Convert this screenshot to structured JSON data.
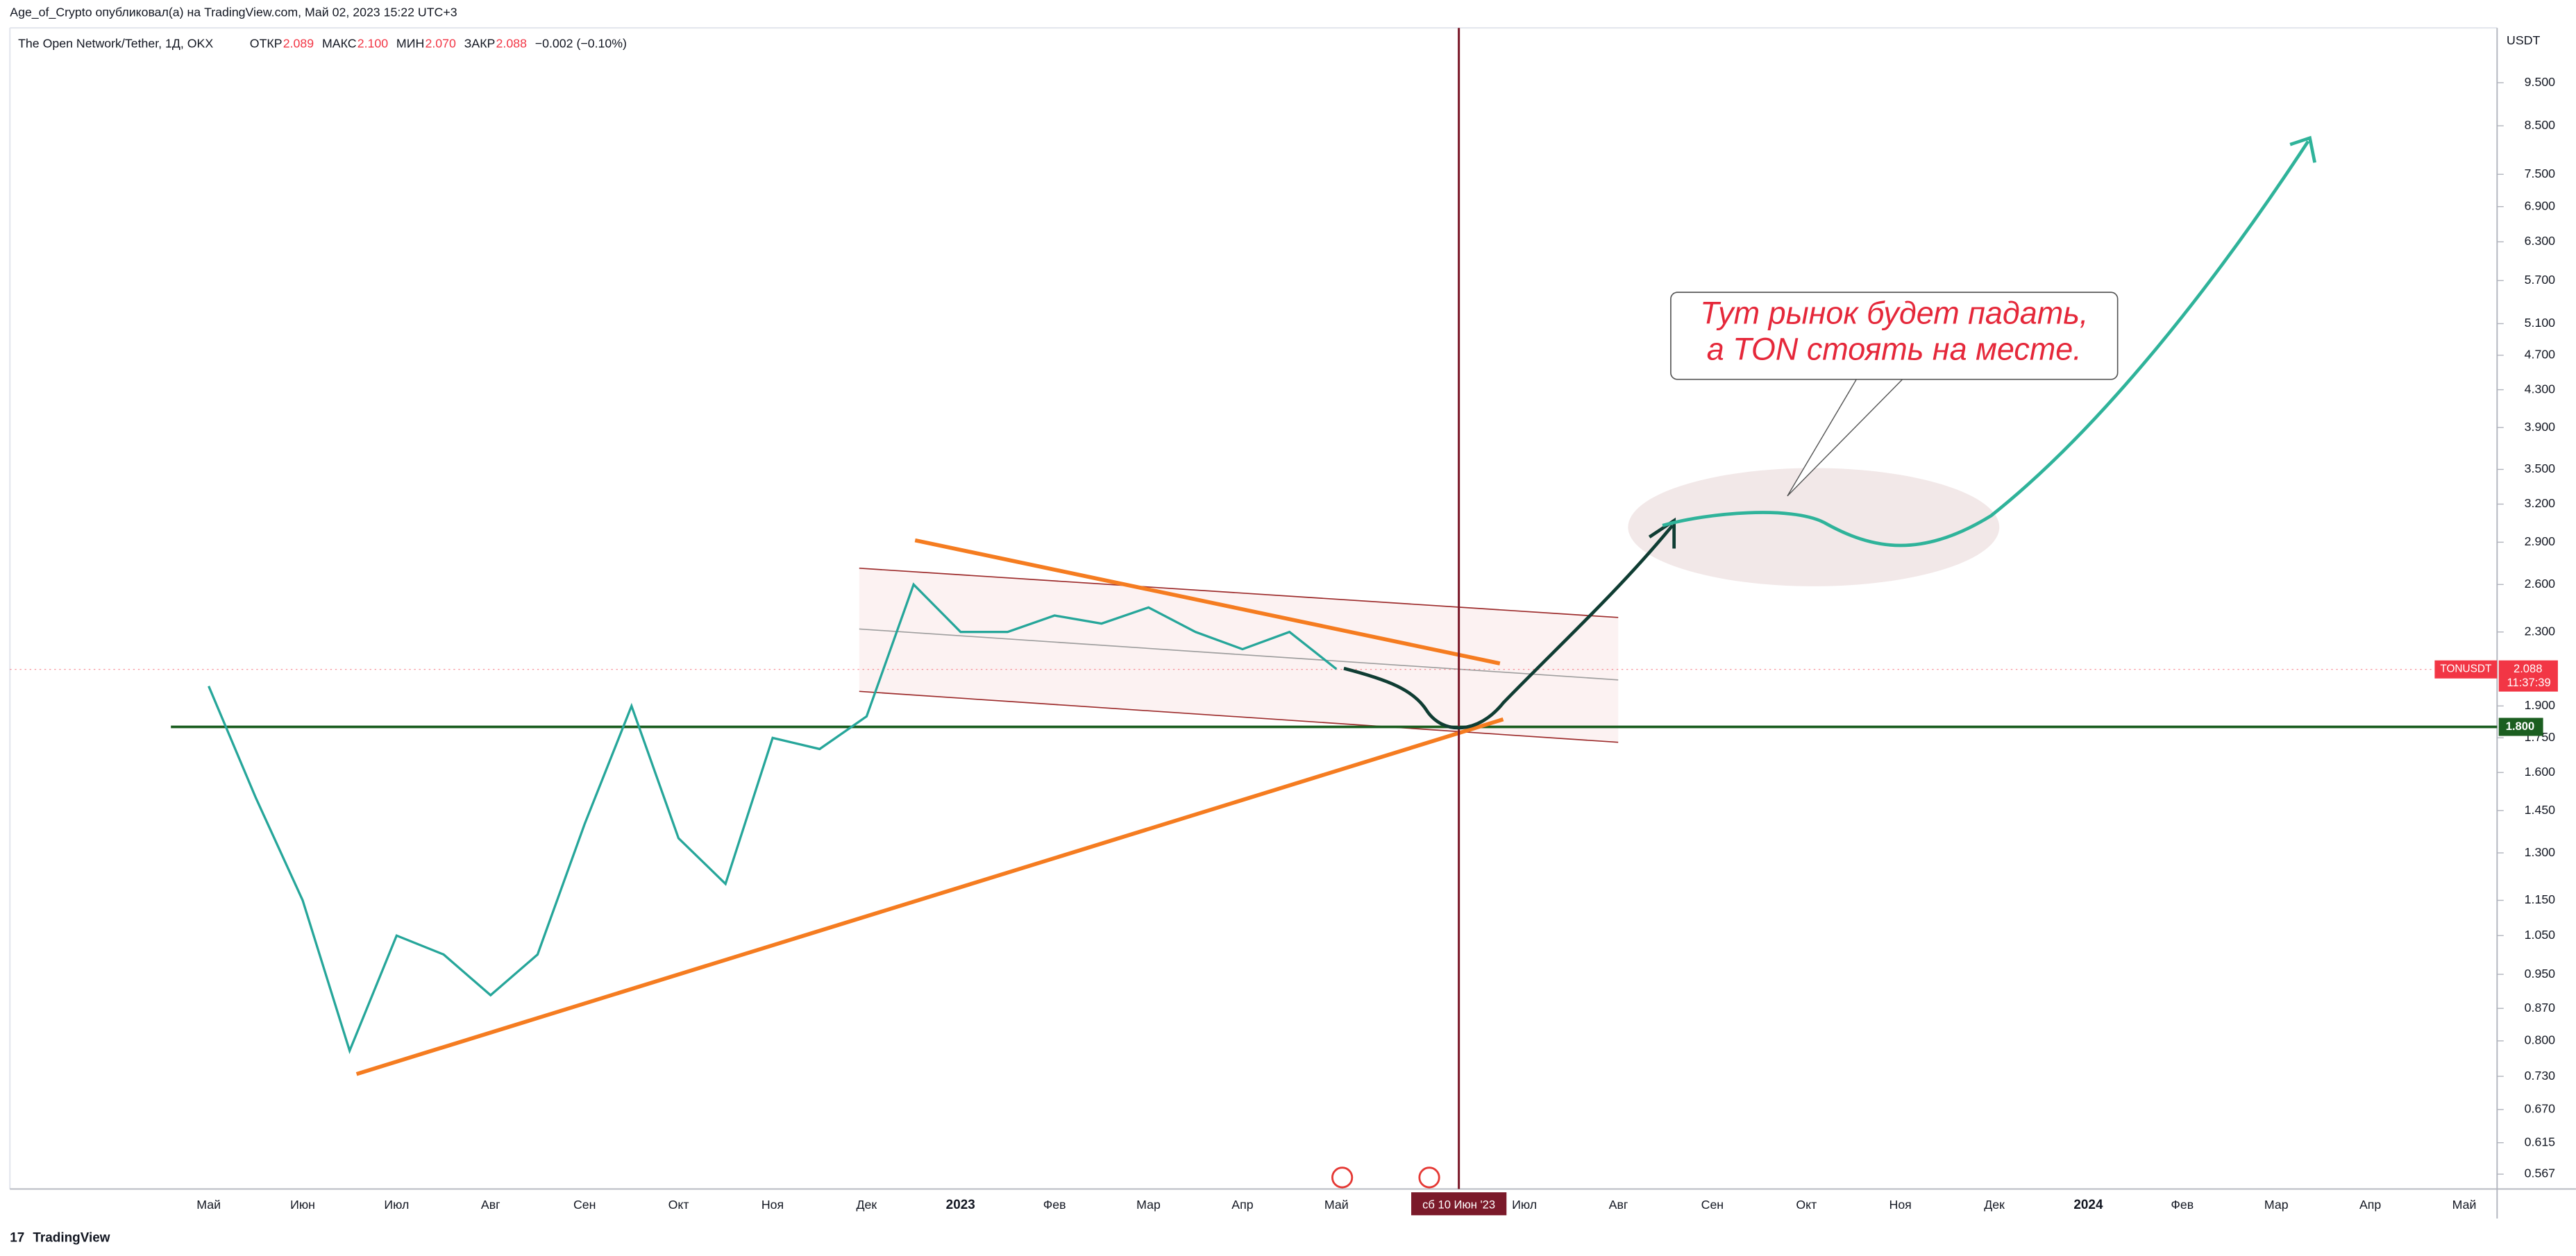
{
  "chart_data": {
    "type": "line",
    "header": "Age_of_Crypto опубликовал(а) на TradingView.com, Май 02, 2023 15:22 UTC+3",
    "symbol": "The Open Network/Tether, 1Д, OKX",
    "ohlc": [
      {
        "label": "ОТКР",
        "value": "2.089"
      },
      {
        "label": "МАКС",
        "value": "2.100"
      },
      {
        "label": "МИН",
        "value": "2.070"
      },
      {
        "label": "ЗАКР",
        "value": "2.088"
      },
      {
        "label": "−0.002 (−0.10%)",
        "value": ""
      }
    ],
    "unit": "USDT",
    "categories": [
      "Май",
      null,
      "Июн",
      null,
      "Июл",
      null,
      "Авг",
      null,
      "Сен",
      null,
      "Окт",
      null,
      "Ноя",
      null,
      "Дек",
      null,
      "2023",
      null,
      "Фев",
      null,
      "Мар",
      null,
      "Апр",
      null,
      "Май",
      null,
      null,
      null,
      "Июл",
      null,
      "Авг",
      null,
      "Сен",
      null,
      "Окт",
      null,
      "Ноя",
      null,
      "Дек",
      null,
      "2024",
      null,
      "Фев",
      null,
      "Мар",
      null,
      "Апр",
      null,
      "Май"
    ],
    "series": [
      {
        "name": "TONUSDT",
        "color": "#26a69a",
        "values": [
          2.0,
          1.5,
          1.15,
          0.78,
          1.05,
          1.0,
          0.9,
          1.0,
          1.4,
          1.9,
          1.35,
          1.2,
          1.75,
          1.7,
          1.85,
          2.6,
          2.3,
          2.3,
          2.4,
          2.35,
          2.45,
          2.3,
          2.2,
          2.3,
          2.09,
          null,
          null,
          null,
          null,
          null,
          null,
          null,
          null,
          null,
          null,
          null,
          null,
          null,
          null,
          null,
          null,
          null,
          null,
          null,
          null,
          null,
          null,
          null,
          null
        ]
      }
    ],
    "log_scale": true,
    "ylim": [
      0.548,
      10.9
    ],
    "yticks": [
      0.567,
      0.615,
      {
        "value": 0.67,
        "label": "0.670"
      },
      {
        "value": 0.73,
        "label": "0.730"
      },
      {
        "value": 0.8,
        "label": "0.800"
      },
      {
        "value": 0.87,
        "label": "0.870"
      },
      {
        "value": 0.95,
        "label": "0.950"
      },
      {
        "value": 1.05,
        "label": "1.050"
      },
      {
        "value": 1.15,
        "label": "1.150"
      },
      {
        "value": 1.3,
        "label": "1.300"
      },
      {
        "value": 1.45,
        "label": "1.450"
      },
      {
        "value": 1.6,
        "label": "1.600"
      },
      {
        "value": 1.75,
        "label": "1.750"
      },
      {
        "value": 1.9,
        "label": "1.900"
      },
      {
        "value": 2.3,
        "label": "2.300"
      },
      {
        "value": 2.6,
        "label": "2.600"
      },
      {
        "value": 2.9,
        "label": "2.900"
      },
      {
        "value": 3.2,
        "label": "3.200"
      },
      {
        "value": 3.5,
        "label": "3.500"
      },
      {
        "value": 3.9,
        "label": "3.900"
      },
      {
        "value": 4.3,
        "label": "4.300"
      },
      {
        "value": 4.7,
        "label": "4.700"
      },
      {
        "value": 5.1,
        "label": "5.100"
      },
      {
        "value": 5.7,
        "label": "5.700"
      },
      {
        "value": 6.3,
        "label": "6.300"
      },
      {
        "value": 6.9,
        "label": "6.900"
      },
      {
        "value": 7.5,
        "label": "7.500"
      },
      {
        "value": 8.5,
        "label": "8.500"
      },
      {
        "value": 9.5,
        "label": "9.500"
      }
    ],
    "current_price": 2.088,
    "ticker": "TONUSDT",
    "countdown": "11:37:39",
    "level": {
      "value": 1.8,
      "label": "1.800"
    },
    "crosshair_date": "сб 10 Июн '23",
    "annotation": [
      "Тут рынок будет падать,",
      "а TON стоять на месте."
    ],
    "footer": "TradingView"
  }
}
